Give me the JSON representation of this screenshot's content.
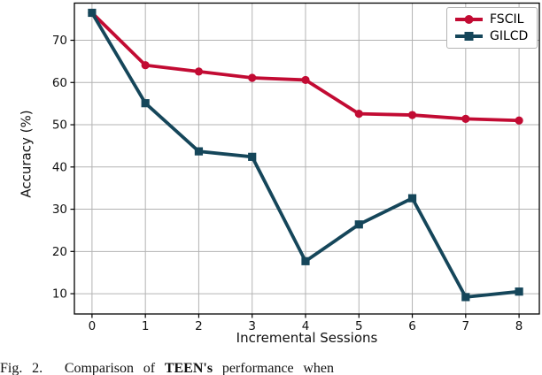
{
  "caption": {
    "fig_label": "Fig. 2.",
    "body_pre": "Comparison of",
    "body_bold": "TEEN's",
    "body_post": "performance when"
  },
  "colors": {
    "fscil_red": "#c20b33",
    "gilcd_teal": "#15465a",
    "grid": "#b3b3b3",
    "spine": "#000000",
    "legend_border": "#b4b4b4"
  },
  "chart_data": {
    "type": "line",
    "title": "",
    "xlabel": "Incremental Sessions",
    "ylabel": "Accuracy (%)",
    "x": [
      0,
      1,
      2,
      3,
      4,
      5,
      6,
      7,
      8
    ],
    "xticks": [
      0,
      1,
      2,
      3,
      4,
      5,
      6,
      7,
      8
    ],
    "yticks": [
      10,
      20,
      30,
      40,
      50,
      60,
      70
    ],
    "xlim": [
      -0.33,
      8.38
    ],
    "ylim": [
      5.2,
      78.8
    ],
    "grid": true,
    "legend_position": "upper right",
    "series": [
      {
        "name": "FSCIL",
        "color": "#c20b33",
        "marker": "circle",
        "values": [
          76.5,
          64.1,
          62.6,
          61.1,
          60.6,
          52.6,
          52.3,
          51.4,
          51.0
        ]
      },
      {
        "name": "GILCD",
        "color": "#15465a",
        "marker": "square",
        "values": [
          76.5,
          55.1,
          43.7,
          42.4,
          17.7,
          26.4,
          32.6,
          9.2,
          10.5
        ]
      }
    ]
  }
}
